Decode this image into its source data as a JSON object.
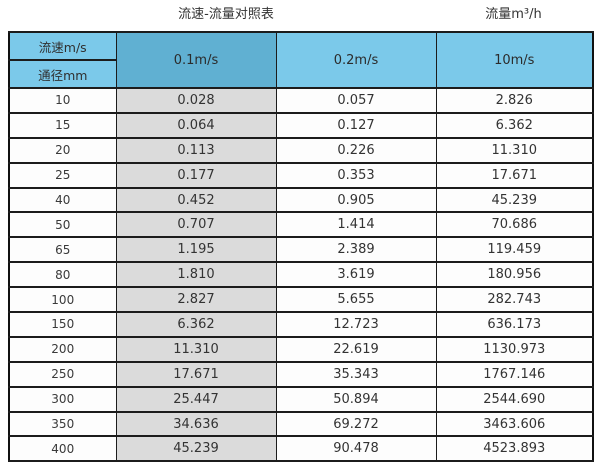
{
  "page": {
    "title_left": "流速-流量对照表",
    "title_right": "流量m³/h"
  },
  "colors": {
    "header_light_blue": "#7bc9ea",
    "header_dark_blue": "#60b0d2",
    "column_gray": "#dbdbdb",
    "border_black": "#1c1c1c",
    "text": "#333333"
  },
  "chart_data": {
    "type": "table",
    "title": "流速-流量对照表",
    "unit_label": "流量m³/h",
    "corner_header_top": "流速m/s",
    "corner_header_bottom": "通径mm",
    "columns": [
      "0.1m/s",
      "0.2m/s",
      "10m/s"
    ],
    "rows": [
      [
        "10",
        "0.028",
        "0.057",
        "2.826"
      ],
      [
        "15",
        "0.064",
        "0.127",
        "6.362"
      ],
      [
        "20",
        "0.113",
        "0.226",
        "11.310"
      ],
      [
        "25",
        "0.177",
        "0.353",
        "17.671"
      ],
      [
        "40",
        "0.452",
        "0.905",
        "45.239"
      ],
      [
        "50",
        "0.707",
        "1.414",
        "70.686"
      ],
      [
        "65",
        "1.195",
        "2.389",
        "119.459"
      ],
      [
        "80",
        "1.810",
        "3.619",
        "180.956"
      ],
      [
        "100",
        "2.827",
        "5.655",
        "282.743"
      ],
      [
        "150",
        "6.362",
        "12.723",
        "636.173"
      ],
      [
        "200",
        "11.310",
        "22.619",
        "1130.973"
      ],
      [
        "250",
        "17.671",
        "35.343",
        "1767.146"
      ],
      [
        "300",
        "25.447",
        "50.894",
        "2544.690"
      ],
      [
        "350",
        "34.636",
        "69.272",
        "3463.606"
      ],
      [
        "400",
        "45.239",
        "90.478",
        "4523.893"
      ]
    ]
  }
}
